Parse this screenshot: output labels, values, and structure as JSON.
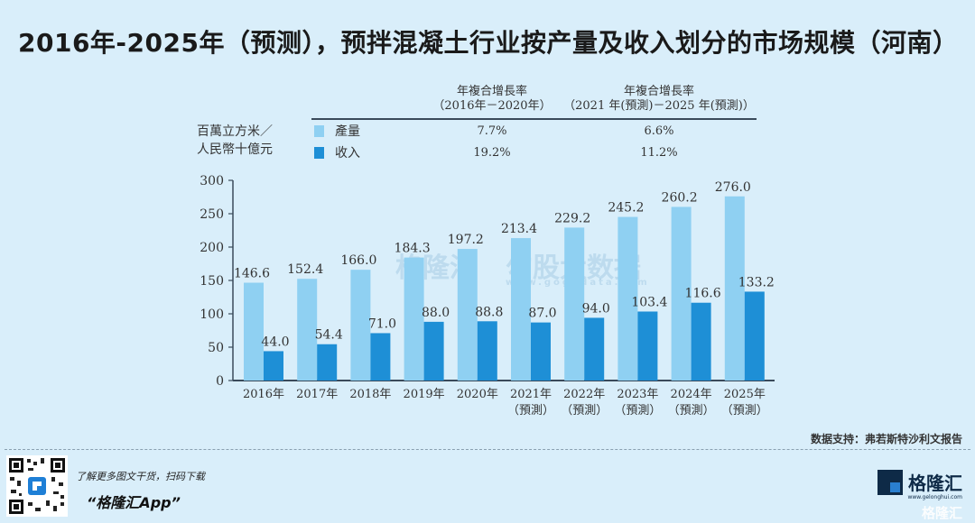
{
  "title": "2016年-2025年（预测），预拌混凝土行业按产量及收入划分的市场规模（河南）",
  "cagr_table": {
    "col1_line1": "年複合增長率",
    "col1_line2": "（2016年－2020年）",
    "col2_line1": "年複合增長率",
    "col2_line2": "（2021 年(預測)－2025 年(預測)）",
    "unit_line1": "百萬立方米／",
    "unit_line2": "人民幣十億元",
    "rows": [
      {
        "label": "產量",
        "color": "#8fd0f2",
        "cagr_2016_2020": "7.7%",
        "cagr_2021_2025": "6.6%"
      },
      {
        "label": "收入",
        "color": "#1e8fd6",
        "cagr_2016_2020": "19.2%",
        "cagr_2021_2025": "11.2%"
      }
    ]
  },
  "chart_data": {
    "type": "bar",
    "title": "2016年-2025年（预测），预拌混凝土行业按产量及收入划分的市场规模（河南）",
    "xlabel": "",
    "ylabel": "百萬立方米／人民幣十億元",
    "ylim": [
      0,
      300
    ],
    "yticks": [
      0,
      50,
      100,
      150,
      200,
      250,
      300
    ],
    "grid": false,
    "legend": "top",
    "categories": [
      {
        "line1": "2016年",
        "line2": ""
      },
      {
        "line1": "2017年",
        "line2": ""
      },
      {
        "line1": "2018年",
        "line2": ""
      },
      {
        "line1": "2019年",
        "line2": ""
      },
      {
        "line1": "2020年",
        "line2": ""
      },
      {
        "line1": "2021年",
        "line2": "（預測）"
      },
      {
        "line1": "2022年",
        "line2": "（預測）"
      },
      {
        "line1": "2023年",
        "line2": "（預測）"
      },
      {
        "line1": "2024年",
        "line2": "（預測）"
      },
      {
        "line1": "2025年",
        "line2": "（預測）"
      }
    ],
    "series": [
      {
        "name": "產量",
        "color": "#8fd0f2",
        "values": [
          146.6,
          152.4,
          166.0,
          184.3,
          197.2,
          213.4,
          229.2,
          245.2,
          260.2,
          276.0
        ]
      },
      {
        "name": "收入",
        "color": "#1e8fd6",
        "values": [
          44.0,
          54.4,
          71.0,
          88.0,
          88.8,
          87.0,
          94.0,
          103.4,
          116.6,
          133.2
        ]
      }
    ]
  },
  "watermarks": {
    "wm1": "格隆汇",
    "wm2": "勾股大数据",
    "wm2_url": "www.gogudata.com"
  },
  "footer": {
    "source": "数据支持：弗若斯特沙利文报告",
    "promo_line1": "了解更多图文干货，扫码下载",
    "promo_line2": "“格隆汇App”",
    "brand": "格隆汇",
    "brand_url": "www.gelonghui.com",
    "brand_secondary": "格隆汇"
  }
}
